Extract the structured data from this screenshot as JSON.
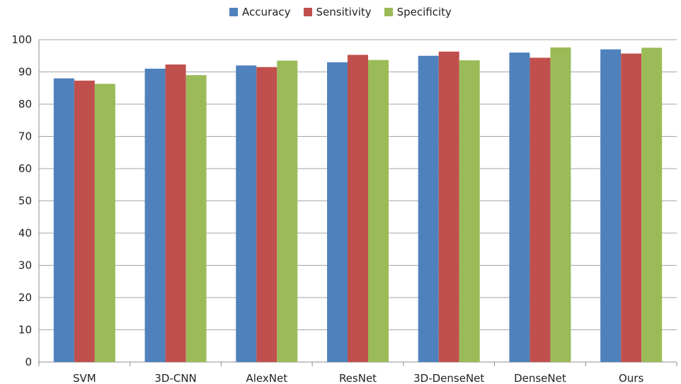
{
  "chart_data": {
    "type": "bar",
    "categories": [
      "SVM",
      "3D-CNN",
      "AlexNet",
      "ResNet",
      "3D-DenseNet",
      "DenseNet",
      "Ours"
    ],
    "series": [
      {
        "name": "Accuracy",
        "color": "#4f81bd",
        "values": [
          88,
          91,
          92,
          93,
          95,
          96,
          97
        ]
      },
      {
        "name": "Sensitivity",
        "color": "#c0504d",
        "values": [
          87.3,
          92.3,
          91.5,
          95.3,
          96.3,
          94.4,
          95.7
        ]
      },
      {
        "name": "Specificity",
        "color": "#9bbb59",
        "values": [
          86.3,
          89,
          93.5,
          93.7,
          93.6,
          97.6,
          97.5
        ]
      }
    ],
    "ylim": [
      0,
      100
    ],
    "yticks": [
      0,
      10,
      20,
      30,
      40,
      50,
      60,
      70,
      80,
      90,
      100
    ],
    "grid": true,
    "legend_position": "top-center"
  }
}
